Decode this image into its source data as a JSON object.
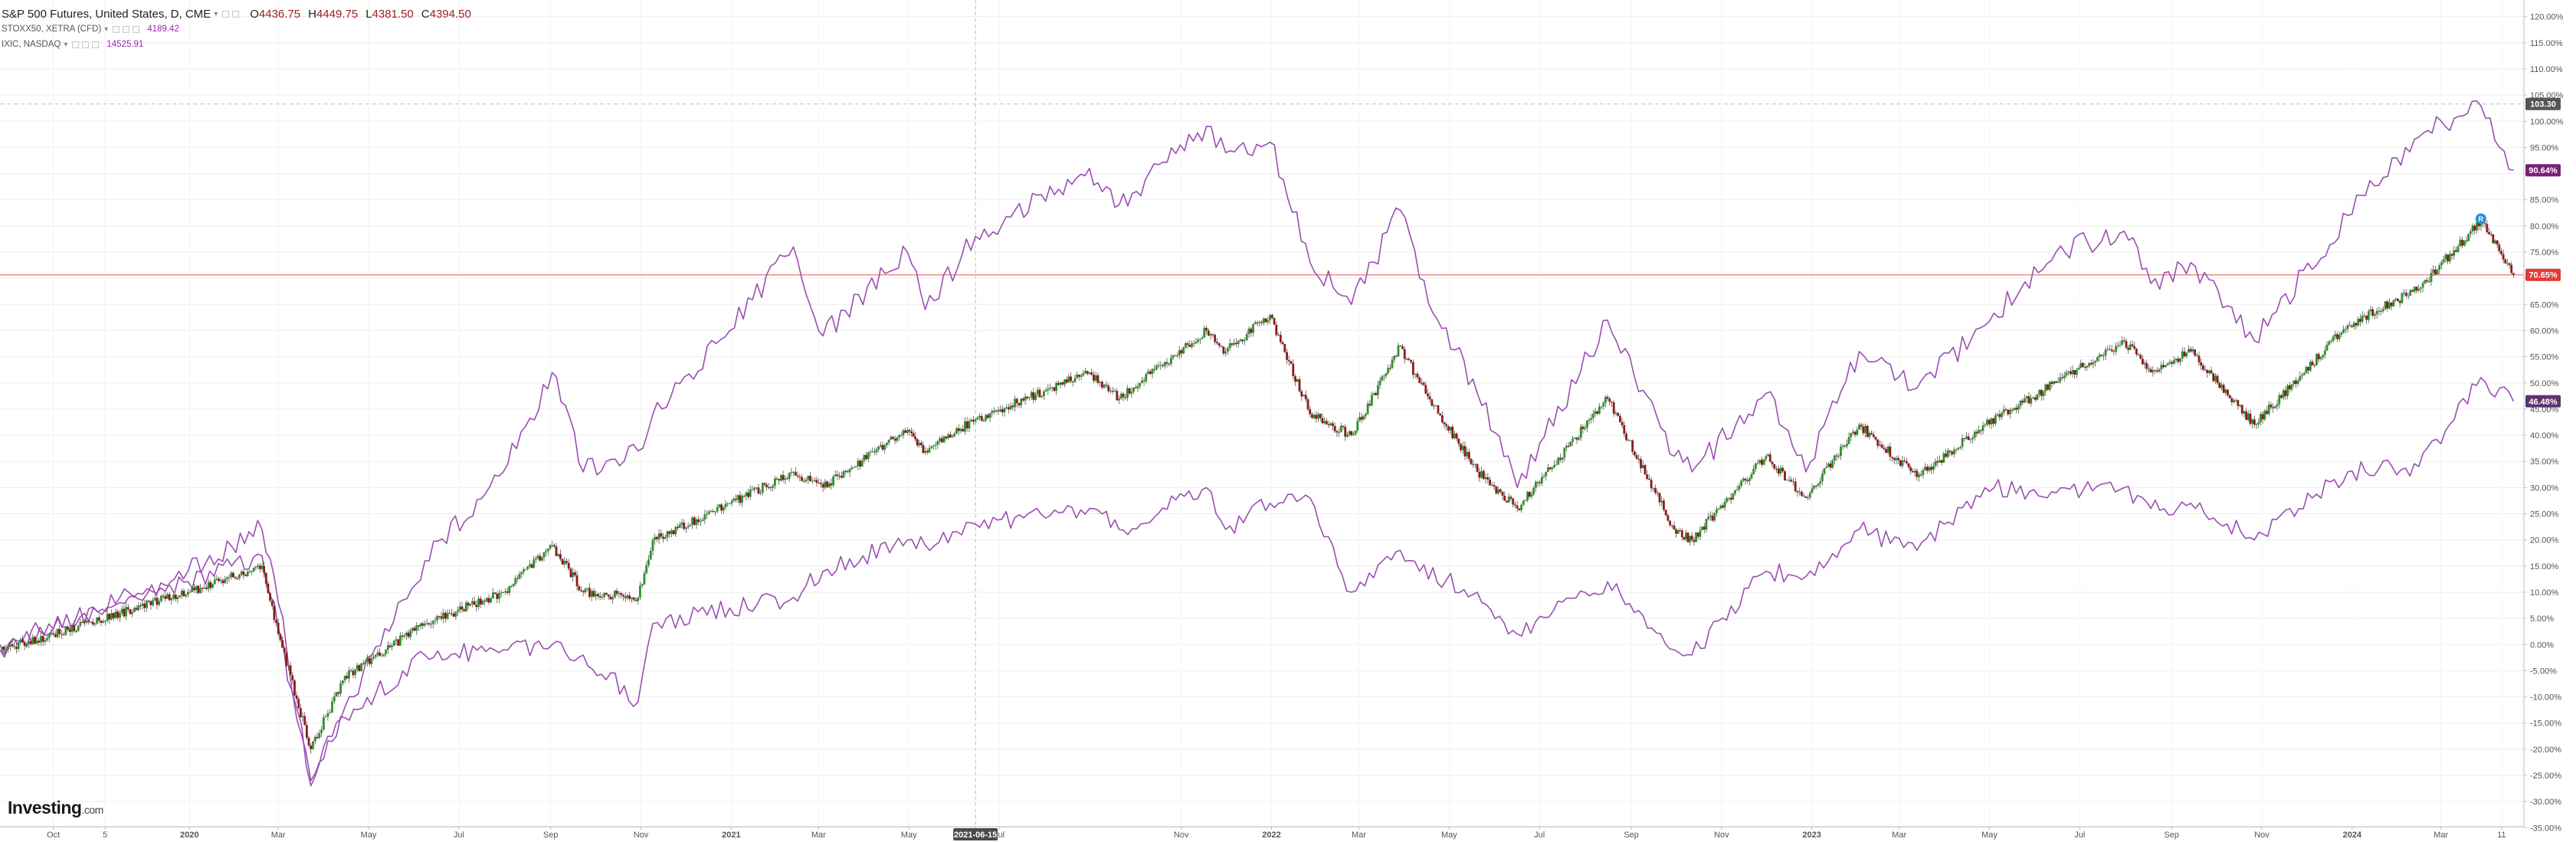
{
  "header": {
    "main_symbol": "S&P 500 Futures, United States, D, CME",
    "ohlc": {
      "open_label": "O",
      "open": "4436.75",
      "high_label": "H",
      "high": "4449.75",
      "low_label": "L",
      "low": "4381.50",
      "close_label": "C",
      "close": "4394.50"
    },
    "comparisons": [
      {
        "symbol": "STOXX50, XETRA (CFD)",
        "last": "4189.42"
      },
      {
        "symbol": "IXIC, NASDAQ",
        "last": "14525.91"
      }
    ]
  },
  "branding": {
    "logo_main": "Investing",
    "logo_suffix": ".com"
  },
  "colors": {
    "up_candle": "#2f8f2f",
    "down_candle": "#8b1a1a",
    "comparison_line": "#9b4fb0",
    "current_price_line": "#f28b8b",
    "current_price_tag": "#e53935",
    "comparison_tag": "#7b1e7a",
    "secondary_tag": "#5e3370",
    "reference_tag": "#555555",
    "marker": "#2d8fd5",
    "grid": "#eeeeee",
    "axis_text": "#555555"
  },
  "chart_data": {
    "type": "line",
    "title": "S&P 500 Futures, United States, D, CME",
    "x_axis": {
      "labels": [
        "Oct",
        "5",
        "2020",
        "Mar",
        "May",
        "Jul",
        "Sep",
        "Nov",
        "2021",
        "Mar",
        "May",
        "Jul",
        "2021-06-15",
        "Nov",
        "2022",
        "Mar",
        "May",
        "Jul",
        "Sep",
        "Nov",
        "2023",
        "Mar",
        "May",
        "Jul",
        "Sep",
        "Nov",
        "2024",
        "Mar",
        "11"
      ],
      "bold_labels": [
        "2020",
        "2021",
        "2022",
        "2023",
        "2024"
      ],
      "crosshair_label": "2021-06-15"
    },
    "y_axis": {
      "unit": "%",
      "range": [
        -36,
        122
      ],
      "ticks": [
        "120.00%",
        "115.00%",
        "110.00%",
        "105.00%",
        "100.00%",
        "95.00%",
        "90.00%",
        "85.00%",
        "80.00%",
        "75.00%",
        "70.00%",
        "65.00%",
        "60.00%",
        "55.00%",
        "50.00%",
        "45.00%",
        "40.00%",
        "35.00%",
        "30.00%",
        "25.00%",
        "20.00%",
        "15.00%",
        "10.00%",
        "5.00%",
        "0.00%",
        "-5.00%",
        "-10.00%",
        "-15.00%",
        "-20.00%",
        "-25.00%",
        "-30.00%",
        "-35.00%"
      ]
    },
    "price_tags": [
      {
        "label": "103.30",
        "value": 103.3,
        "kind": "reference"
      },
      {
        "label": "90.64%",
        "value": 90.64,
        "kind": "comparison"
      },
      {
        "label": "70.65%",
        "value": 70.65,
        "kind": "current"
      },
      {
        "label": "46.48%",
        "value": 46.48,
        "kind": "secondary"
      }
    ],
    "reference_line": 103.3,
    "current_line": 70.65,
    "marker": {
      "label": "R",
      "date": "2024-03-28",
      "value": 80.5
    },
    "series": [
      {
        "name": "S&P 500 Futures, United States, D, CME",
        "style": "candles",
        "points": [
          [
            "2019-08-26",
            -1
          ],
          [
            "2019-10-01",
            2
          ],
          [
            "2019-11-15",
            6
          ],
          [
            "2019-12-31",
            10
          ],
          [
            "2020-02-19",
            15
          ],
          [
            "2020-03-01",
            2
          ],
          [
            "2020-03-23",
            -20
          ],
          [
            "2020-04-15",
            -6
          ],
          [
            "2020-06-08",
            4
          ],
          [
            "2020-07-31",
            10
          ],
          [
            "2020-09-02",
            19
          ],
          [
            "2020-09-23",
            10
          ],
          [
            "2020-10-30",
            9
          ],
          [
            "2020-11-09",
            20
          ],
          [
            "2020-12-31",
            27
          ],
          [
            "2021-02-12",
            33
          ],
          [
            "2021-03-04",
            30
          ],
          [
            "2021-04-30",
            41
          ],
          [
            "2021-05-12",
            37
          ],
          [
            "2021-06-15",
            43
          ],
          [
            "2021-08-31",
            52
          ],
          [
            "2021-09-20",
            47
          ],
          [
            "2021-11-18",
            60
          ],
          [
            "2021-12-01",
            56
          ],
          [
            "2021-12-31",
            63
          ],
          [
            "2022-01-27",
            44
          ],
          [
            "2022-02-24",
            40
          ],
          [
            "2022-03-29",
            57
          ],
          [
            "2022-04-11",
            50
          ],
          [
            "2022-05-20",
            33
          ],
          [
            "2022-06-16",
            26
          ],
          [
            "2022-08-16",
            47
          ],
          [
            "2022-09-30",
            22
          ],
          [
            "2022-10-12",
            20
          ],
          [
            "2022-12-01",
            36
          ],
          [
            "2022-12-28",
            28
          ],
          [
            "2023-02-02",
            42
          ],
          [
            "2023-03-13",
            32
          ],
          [
            "2023-04-28",
            42
          ],
          [
            "2023-06-15",
            50
          ],
          [
            "2023-07-31",
            58
          ],
          [
            "2023-08-18",
            52
          ],
          [
            "2023-09-14",
            56
          ],
          [
            "2023-10-27",
            42
          ],
          [
            "2023-12-29",
            61
          ],
          [
            "2024-02-15",
            68
          ],
          [
            "2024-03-28",
            81
          ],
          [
            "2024-04-19",
            70.65
          ]
        ]
      },
      {
        "name": "IXIC, NASDAQ",
        "style": "line",
        "points": [
          [
            "2019-08-26",
            0
          ],
          [
            "2019-10-01",
            3
          ],
          [
            "2019-11-15",
            9
          ],
          [
            "2019-12-31",
            14
          ],
          [
            "2020-02-19",
            22
          ],
          [
            "2020-03-01",
            8
          ],
          [
            "2020-03-23",
            -27
          ],
          [
            "2020-04-15",
            -12
          ],
          [
            "2020-06-08",
            16
          ],
          [
            "2020-07-31",
            33
          ],
          [
            "2020-09-02",
            52
          ],
          [
            "2020-09-23",
            33
          ],
          [
            "2020-10-30",
            37
          ],
          [
            "2020-11-09",
            44
          ],
          [
            "2020-12-31",
            60
          ],
          [
            "2021-02-12",
            76
          ],
          [
            "2021-03-04",
            59
          ],
          [
            "2021-04-30",
            75
          ],
          [
            "2021-05-12",
            64
          ],
          [
            "2021-06-15",
            78
          ],
          [
            "2021-08-31",
            91
          ],
          [
            "2021-09-20",
            84
          ],
          [
            "2021-11-18",
            99
          ],
          [
            "2021-12-01",
            94
          ],
          [
            "2021-12-31",
            96
          ],
          [
            "2022-01-27",
            73
          ],
          [
            "2022-02-24",
            65
          ],
          [
            "2022-03-29",
            83
          ],
          [
            "2022-04-11",
            70
          ],
          [
            "2022-05-20",
            48
          ],
          [
            "2022-06-16",
            30
          ],
          [
            "2022-08-16",
            62
          ],
          [
            "2022-09-30",
            36
          ],
          [
            "2022-10-12",
            33
          ],
          [
            "2022-12-01",
            48
          ],
          [
            "2022-12-28",
            33
          ],
          [
            "2023-02-02",
            56
          ],
          [
            "2023-03-13",
            49
          ],
          [
            "2023-04-28",
            61
          ],
          [
            "2023-06-15",
            75
          ],
          [
            "2023-07-31",
            79
          ],
          [
            "2023-08-18",
            69
          ],
          [
            "2023-09-14",
            73
          ],
          [
            "2023-10-27",
            58
          ],
          [
            "2023-12-29",
            82
          ],
          [
            "2024-02-15",
            97
          ],
          [
            "2024-03-28",
            103
          ],
          [
            "2024-04-19",
            90.64
          ]
        ]
      },
      {
        "name": "STOXX50, XETRA (CFD)",
        "style": "line",
        "points": [
          [
            "2019-08-26",
            -1
          ],
          [
            "2019-10-01",
            3
          ],
          [
            "2019-11-15",
            8
          ],
          [
            "2019-12-31",
            12
          ],
          [
            "2020-02-19",
            17
          ],
          [
            "2020-03-01",
            3
          ],
          [
            "2020-03-23",
            -26
          ],
          [
            "2020-04-15",
            -14
          ],
          [
            "2020-06-08",
            -2
          ],
          [
            "2020-07-31",
            -1
          ],
          [
            "2020-09-02",
            0
          ],
          [
            "2020-09-23",
            -2
          ],
          [
            "2020-10-30",
            -11
          ],
          [
            "2020-11-09",
            4
          ],
          [
            "2020-12-31",
            7
          ],
          [
            "2021-02-12",
            9
          ],
          [
            "2021-03-04",
            14
          ],
          [
            "2021-04-30",
            20
          ],
          [
            "2021-05-12",
            19
          ],
          [
            "2021-06-15",
            23
          ],
          [
            "2021-08-31",
            26
          ],
          [
            "2021-09-20",
            22
          ],
          [
            "2021-11-18",
            30
          ],
          [
            "2021-12-01",
            22
          ],
          [
            "2021-12-31",
            27
          ],
          [
            "2022-01-27",
            28
          ],
          [
            "2022-02-24",
            10
          ],
          [
            "2022-03-29",
            18
          ],
          [
            "2022-04-11",
            14
          ],
          [
            "2022-05-20",
            10
          ],
          [
            "2022-06-16",
            2
          ],
          [
            "2022-08-16",
            12
          ],
          [
            "2022-09-30",
            -1
          ],
          [
            "2022-10-12",
            -2
          ],
          [
            "2022-12-01",
            14
          ],
          [
            "2022-12-28",
            13
          ],
          [
            "2023-02-02",
            22
          ],
          [
            "2023-03-13",
            18
          ],
          [
            "2023-04-28",
            30
          ],
          [
            "2023-06-15",
            29
          ],
          [
            "2023-07-31",
            30
          ],
          [
            "2023-08-18",
            26
          ],
          [
            "2023-09-14",
            27
          ],
          [
            "2023-10-27",
            20
          ],
          [
            "2023-12-29",
            33
          ],
          [
            "2024-02-15",
            34
          ],
          [
            "2024-03-28",
            51
          ],
          [
            "2024-04-19",
            46.48
          ]
        ]
      }
    ]
  }
}
